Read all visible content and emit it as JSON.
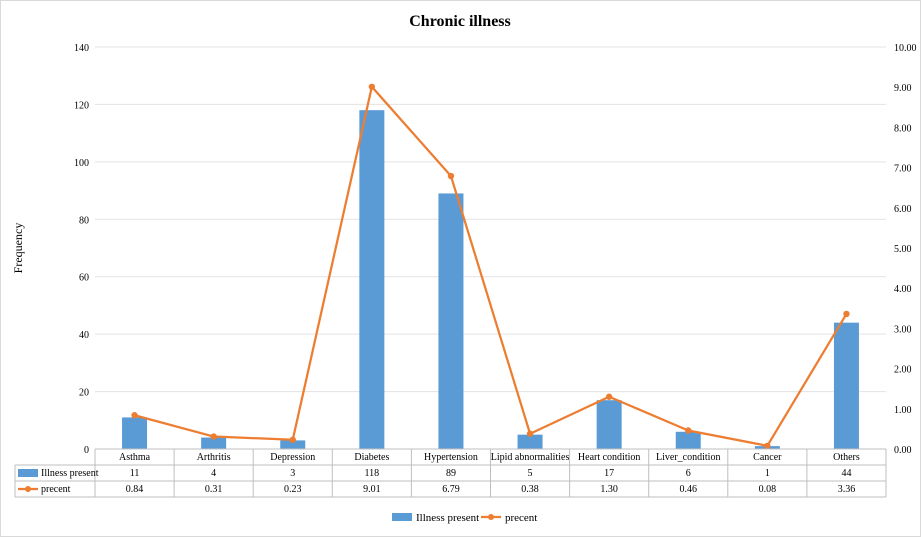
{
  "chart_data": {
    "type": "bar",
    "title": "Chronic illness",
    "ylabel": "Frequency",
    "categories": [
      "Asthma",
      "Arthritis",
      "Depression",
      "Diabetes",
      "Hypertension",
      "Lipid abnormalities",
      "Heart condition",
      "Liver_condition",
      "Cancer",
      "Others"
    ],
    "series": [
      {
        "name": "Illness present",
        "type": "bar",
        "axis": "left",
        "color": "#5b9bd5",
        "values": [
          11,
          4,
          3,
          118,
          89,
          5,
          17,
          6,
          1,
          44
        ],
        "labels": [
          "11",
          "4",
          "3",
          "118",
          "89",
          "5",
          "17",
          "6",
          "1",
          "44"
        ]
      },
      {
        "name": "precent",
        "type": "line",
        "axis": "right",
        "color": "#ed7d31",
        "values": [
          0.84,
          0.31,
          0.23,
          9.01,
          6.79,
          0.38,
          1.3,
          0.46,
          0.08,
          3.36
        ],
        "labels": [
          "0.84",
          "0.31",
          "0.23",
          "9.01",
          "6.79",
          "0.38",
          "1.30",
          "0.46",
          "0.08",
          "3.36"
        ]
      }
    ],
    "ylim": [
      0,
      140
    ],
    "y_ticks": [
      "0",
      "20",
      "40",
      "60",
      "80",
      "100",
      "120",
      "140"
    ],
    "y2lim": [
      0,
      10
    ],
    "y2_ticks": [
      "0.00",
      "1.00",
      "2.00",
      "3.00",
      "4.00",
      "5.00",
      "6.00",
      "7.00",
      "8.00",
      "9.00",
      "10.00"
    ],
    "grid": true,
    "data_table": true,
    "legend_position": "bottom"
  }
}
